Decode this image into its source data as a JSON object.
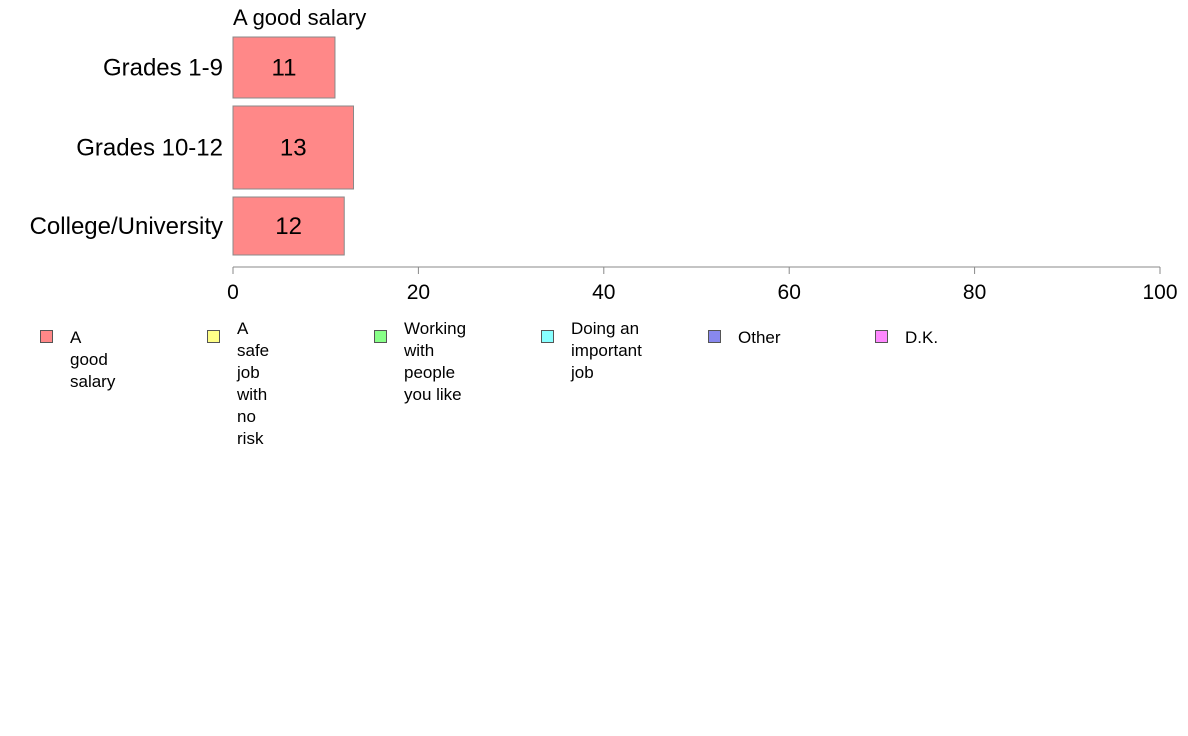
{
  "chart_data": {
    "type": "bar",
    "orientation": "horizontal",
    "title": "A good salary",
    "categories": [
      "Grades 1-9",
      "Grades 10-12",
      "College/University"
    ],
    "series": [
      {
        "name": "A good salary",
        "values": [
          11,
          13,
          12
        ]
      }
    ],
    "xlim": [
      0,
      100
    ],
    "x_ticks": [
      "0",
      "20",
      "40",
      "60",
      "80",
      "100"
    ],
    "grid": false,
    "legend": {
      "placement": "bottom",
      "entries": [
        {
          "label": "A good salary",
          "color": "#ff8888"
        },
        {
          "label": "A safe job\nwith no risk",
          "color": "#ffff88"
        },
        {
          "label": "Working with\npeople you like",
          "color": "#88ff88"
        },
        {
          "label": "Doing an\nimportant job",
          "color": "#88ffff"
        },
        {
          "label": "Other",
          "color": "#8888ee"
        },
        {
          "label": "D.K.",
          "color": "#ff88ff"
        }
      ]
    },
    "bar_color": "#ff8888",
    "bar_edge_color": "#888888",
    "axis_color": "#888888"
  }
}
